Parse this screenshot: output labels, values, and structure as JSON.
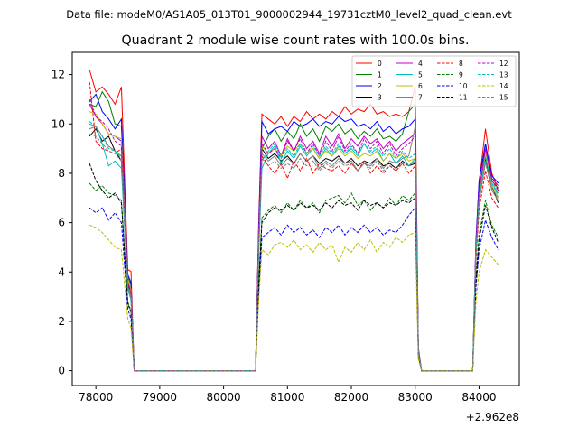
{
  "suptitle": "Data file: modeM0/AS1A05_013T01_9000002944_19731cztM0_level2_quad_clean.evt",
  "chart_data": {
    "type": "line",
    "title": "Quadrant 2 module wise count rates with 100.0s bins.",
    "xlabel": "",
    "ylabel": "",
    "x_offset_label": "+2.962e8",
    "xlim": [
      77630,
      84630
    ],
    "ylim": [
      -0.6,
      12.9
    ],
    "xticks": [
      78000,
      79000,
      80000,
      81000,
      82000,
      83000,
      84000
    ],
    "xtick_labels": [
      "78000",
      "79000",
      "80000",
      "81000",
      "82000",
      "83000",
      "84000"
    ],
    "yticks": [
      0,
      2,
      4,
      6,
      8,
      10,
      12
    ],
    "ytick_labels": [
      "0",
      "2",
      "4",
      "6",
      "8",
      "10",
      "12"
    ],
    "legend_position": "top-right",
    "segments": [
      {
        "x_start": 77900,
        "x_end": 78500
      },
      {
        "x_start": 80600,
        "x_end": 83000
      },
      {
        "x_start": 84000,
        "x_end": 84300
      }
    ],
    "zero_points": [
      78600,
      78700,
      80500,
      83100,
      83200,
      83900
    ],
    "drop_points": [
      {
        "x": 78550,
        "fraction": 0.35
      },
      {
        "x": 80550,
        "fraction": 0.58
      },
      {
        "x": 83050,
        "fraction": 0.08
      },
      {
        "x": 83950,
        "fraction": 0.68
      }
    ],
    "series": [
      {
        "name": "0",
        "color": "#ff0000",
        "dashed": false,
        "seed": 1,
        "seg1": [
          12.2,
          11.3,
          11.5,
          11.2,
          10.8,
          11.5,
          4.1
        ],
        "seg2": [
          10.4,
          10.2,
          10.0,
          10.3,
          9.9,
          10.3,
          10.1,
          10.5,
          10.2,
          10.4,
          10.2,
          10.5,
          10.3,
          10.7,
          10.4,
          10.6,
          10.5,
          10.8,
          10.4,
          10.5,
          10.3,
          10.4,
          10.3,
          10.5,
          11.5
        ],
        "seg3": [
          7.6,
          9.8,
          8.0,
          7.3
        ]
      },
      {
        "name": "1",
        "color": "#008000",
        "dashed": false,
        "seed": 2,
        "seg1": [
          10.8,
          10.7,
          11.3,
          10.9,
          10.0,
          9.9,
          3.8
        ],
        "seg2": [
          9.0,
          9.5,
          9.8,
          9.3,
          9.7,
          9.4,
          10.0,
          9.5,
          9.8,
          9.3,
          9.9,
          9.7,
          10.0,
          9.6,
          9.8,
          9.4,
          9.7,
          9.5,
          9.8,
          9.4,
          9.5,
          9.3,
          9.6,
          10.5,
          10.8
        ],
        "seg3": [
          7.2,
          9.2,
          7.7,
          7.4
        ]
      },
      {
        "name": "2",
        "color": "#0000ff",
        "dashed": false,
        "seed": 3,
        "seg1": [
          10.9,
          11.2,
          10.5,
          10.2,
          9.8,
          10.2,
          3.9
        ],
        "seg2": [
          10.1,
          9.6,
          9.8,
          9.9,
          9.7,
          10.1,
          9.9,
          10.0,
          10.2,
          9.9,
          10.1,
          10.0,
          10.3,
          10.1,
          10.2,
          9.9,
          10.0,
          9.8,
          10.1,
          9.7,
          9.9,
          9.6,
          9.8,
          9.9,
          10.2
        ],
        "seg3": [
          7.7,
          9.2,
          7.9,
          7.6
        ]
      },
      {
        "name": "3",
        "color": "#000000",
        "dashed": false,
        "seed": 4,
        "seg1": [
          9.5,
          9.8,
          9.3,
          9.5,
          8.9,
          8.5,
          3.5
        ],
        "seg2": [
          9.0,
          8.6,
          8.8,
          8.5,
          8.7,
          8.4,
          8.8,
          8.5,
          8.7,
          8.4,
          8.6,
          8.5,
          8.7,
          8.4,
          8.6,
          8.3,
          8.5,
          8.4,
          8.6,
          8.3,
          8.4,
          8.2,
          8.5,
          8.3,
          8.4
        ],
        "seg3": [
          6.9,
          8.6,
          7.5,
          6.8
        ]
      },
      {
        "name": "4",
        "color": "#c000c0",
        "dashed": false,
        "seed": 5,
        "seg1": [
          10.8,
          10.3,
          10.0,
          9.6,
          9.5,
          9.3,
          3.6
        ],
        "seg2": [
          9.5,
          9.0,
          9.3,
          8.7,
          9.4,
          8.9,
          9.5,
          9.0,
          9.3,
          8.8,
          9.5,
          9.1,
          9.6,
          9.0,
          9.4,
          9.1,
          9.5,
          9.2,
          9.4,
          9.0,
          9.3,
          8.9,
          9.2,
          9.4,
          9.6
        ],
        "seg3": [
          7.3,
          9.0,
          7.8,
          7.5
        ]
      },
      {
        "name": "5",
        "color": "#00bfbf",
        "dashed": false,
        "seed": 6,
        "seg1": [
          10.0,
          9.9,
          9.2,
          8.3,
          8.5,
          8.2,
          3.3
        ],
        "seg2": [
          8.2,
          8.8,
          9.1,
          8.4,
          8.9,
          8.6,
          9.1,
          8.7,
          9.0,
          8.6,
          9.0,
          8.7,
          9.1,
          8.8,
          9.0,
          8.7,
          9.2,
          8.8,
          9.0,
          8.5,
          8.8,
          8.4,
          8.7,
          8.3,
          8.6
        ],
        "seg3": [
          7.0,
          8.7,
          7.6,
          7.2
        ]
      },
      {
        "name": "6",
        "color": "#bfbf00",
        "dashed": false,
        "seed": 7,
        "seg1": [
          10.5,
          10.4,
          10.0,
          9.6,
          9.5,
          9.4,
          3.7
        ],
        "seg2": [
          9.1,
          8.8,
          9.0,
          8.7,
          9.1,
          8.9,
          9.2,
          8.8,
          9.0,
          8.6,
          8.9,
          8.7,
          9.0,
          8.7,
          8.9,
          8.6,
          8.8,
          8.7,
          8.9,
          8.5,
          8.8,
          8.6,
          8.8,
          8.5,
          8.6
        ],
        "seg3": [
          7.1,
          8.8,
          7.5,
          7.0
        ]
      },
      {
        "name": "7",
        "color": "#808080",
        "dashed": false,
        "seed": 8,
        "seg1": [
          9.8,
          9.9,
          9.5,
          9.1,
          8.9,
          8.7,
          3.4
        ],
        "seg2": [
          8.8,
          8.5,
          8.7,
          8.3,
          8.6,
          8.4,
          8.8,
          8.5,
          8.7,
          8.2,
          8.5,
          8.3,
          8.6,
          8.4,
          8.5,
          8.1,
          8.4,
          8.3,
          8.6,
          8.2,
          8.5,
          8.4,
          8.6,
          8.7,
          9.9
        ],
        "seg3": [
          6.8,
          8.5,
          7.3,
          6.9
        ]
      },
      {
        "name": "8",
        "color": "#ff0000",
        "dashed": true,
        "seed": 9,
        "seg1": [
          11.7,
          9.3,
          9.0,
          8.9,
          8.8,
          9.0,
          3.6
        ],
        "seg2": [
          8.7,
          8.3,
          8.0,
          8.4,
          7.8,
          8.5,
          8.1,
          8.6,
          8.0,
          8.4,
          8.2,
          8.1,
          8.3,
          8.0,
          8.4,
          8.1,
          8.5,
          8.0,
          8.3,
          8.0,
          8.3,
          8.1,
          8.4,
          8.0,
          8.3
        ],
        "seg3": [
          6.5,
          8.1,
          7.0,
          6.6
        ]
      },
      {
        "name": "9",
        "color": "#008000",
        "dashed": true,
        "seed": 10,
        "seg1": [
          7.6,
          7.3,
          7.5,
          7.2,
          7.1,
          6.9,
          2.8
        ],
        "seg2": [
          6.2,
          6.5,
          6.7,
          6.4,
          6.8,
          6.5,
          6.9,
          6.6,
          6.8,
          6.4,
          6.9,
          7.0,
          7.1,
          6.8,
          7.2,
          6.7,
          6.9,
          6.5,
          6.8,
          6.6,
          7.0,
          6.7,
          7.1,
          6.9,
          7.2
        ],
        "seg3": [
          5.5,
          6.9,
          5.9,
          5.4
        ]
      },
      {
        "name": "10",
        "color": "#0000ff",
        "dashed": true,
        "seed": 11,
        "seg1": [
          6.6,
          6.4,
          6.6,
          6.1,
          6.4,
          6.0,
          2.5
        ],
        "seg2": [
          5.4,
          5.6,
          5.8,
          5.5,
          5.9,
          5.6,
          5.8,
          5.5,
          5.7,
          5.4,
          5.8,
          5.6,
          5.9,
          5.5,
          5.8,
          5.6,
          5.9,
          5.6,
          5.8,
          5.5,
          5.7,
          5.6,
          5.9,
          6.3,
          6.6
        ],
        "seg3": [
          4.9,
          6.1,
          5.4,
          4.9
        ]
      },
      {
        "name": "11",
        "color": "#000000",
        "dashed": true,
        "seed": 12,
        "seg1": [
          8.4,
          7.7,
          7.3,
          7.0,
          7.2,
          6.8,
          2.7
        ],
        "seg2": [
          6.0,
          6.4,
          6.6,
          6.5,
          6.7,
          6.5,
          6.8,
          6.6,
          6.7,
          6.5,
          6.8,
          6.6,
          6.9,
          6.7,
          6.8,
          6.5,
          6.9,
          6.7,
          6.8,
          6.6,
          6.8,
          6.7,
          6.9,
          6.8,
          7.0
        ],
        "seg3": [
          5.3,
          6.7,
          5.8,
          5.2
        ]
      },
      {
        "name": "12",
        "color": "#c000c0",
        "dashed": true,
        "seed": 13,
        "seg1": [
          11.0,
          10.3,
          10.1,
          9.8,
          9.3,
          9.1,
          3.6
        ],
        "seg2": [
          9.2,
          8.8,
          9.0,
          8.6,
          9.3,
          8.9,
          9.4,
          8.8,
          9.2,
          8.7,
          9.3,
          8.9,
          9.5,
          8.9,
          9.2,
          8.8,
          9.4,
          9.0,
          9.3,
          8.8,
          9.2,
          8.7,
          9.0,
          9.2,
          9.5
        ],
        "seg3": [
          7.2,
          9.0,
          7.7,
          7.3
        ]
      },
      {
        "name": "13",
        "color": "#00bfbf",
        "dashed": true,
        "seed": 14,
        "seg1": [
          10.1,
          9.9,
          9.5,
          9.0,
          8.9,
          8.6,
          3.4
        ],
        "seg2": [
          8.5,
          8.9,
          9.2,
          8.6,
          9.0,
          8.7,
          9.2,
          8.8,
          9.1,
          8.7,
          9.1,
          8.8,
          9.2,
          8.8,
          9.1,
          8.8,
          9.2,
          8.9,
          9.1,
          8.7,
          9.0,
          8.6,
          8.9,
          8.6,
          8.8
        ],
        "seg3": [
          7.0,
          8.7,
          7.6,
          7.1
        ]
      },
      {
        "name": "14",
        "color": "#bfbf00",
        "dashed": true,
        "seed": 15,
        "seg1": [
          5.9,
          5.8,
          5.6,
          5.3,
          5.0,
          4.9,
          2.1
        ],
        "seg2": [
          4.9,
          4.7,
          5.1,
          5.2,
          5.0,
          5.3,
          4.9,
          5.1,
          4.8,
          5.2,
          4.9,
          5.1,
          4.4,
          5.0,
          4.8,
          5.2,
          4.9,
          5.3,
          4.8,
          5.2,
          5.0,
          5.4,
          5.2,
          5.5,
          5.6
        ],
        "seg3": [
          4.0,
          4.9,
          4.6,
          4.3
        ]
      },
      {
        "name": "15",
        "color": "#808080",
        "dashed": true,
        "seed": 16,
        "seg1": [
          9.6,
          9.5,
          9.2,
          8.9,
          8.8,
          8.5,
          3.4
        ],
        "seg2": [
          8.6,
          8.3,
          8.5,
          8.2,
          8.4,
          8.2,
          8.6,
          8.3,
          8.5,
          8.1,
          8.4,
          8.2,
          8.5,
          8.3,
          8.4,
          8.1,
          8.4,
          8.2,
          8.5,
          8.1,
          8.3,
          8.2,
          8.4,
          8.3,
          8.5
        ],
        "seg3": [
          6.9,
          8.4,
          7.4,
          7.0
        ]
      }
    ]
  }
}
